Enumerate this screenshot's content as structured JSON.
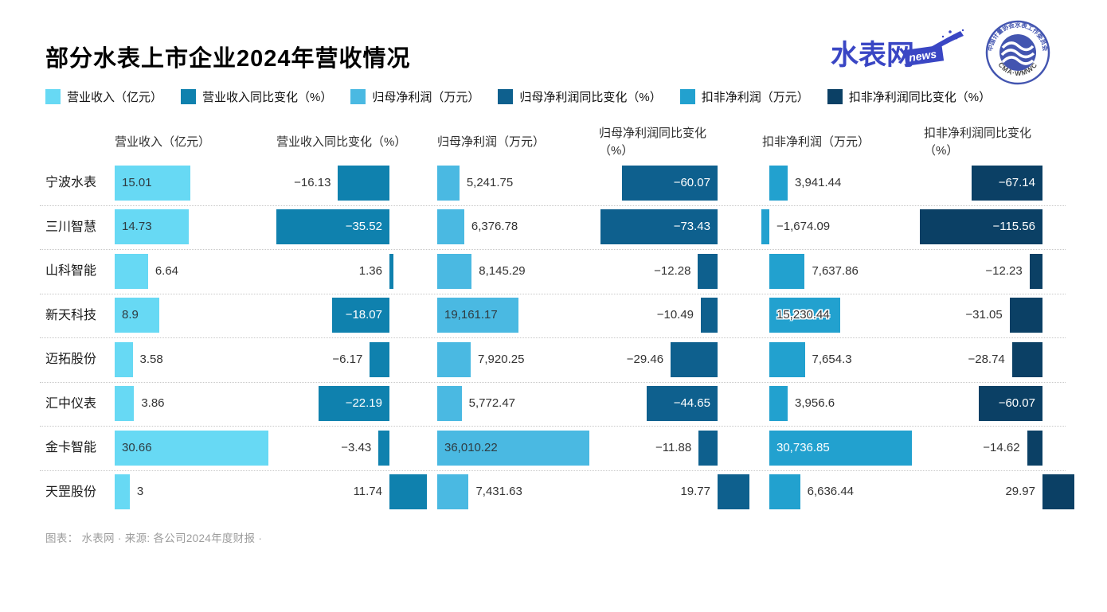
{
  "header": {
    "title": "部分水表上市企业2024年营收情况",
    "logos": {
      "news": {
        "text": "水表网",
        "tag": "news"
      },
      "badge": {
        "arc_top": "中国计量协会水表工作委员会",
        "arc_bottom": "CMA·WMWC"
      }
    }
  },
  "footer": {
    "text": "图表： 水表网 · 来源: 各公司2024年度财报 ·"
  },
  "chart_data": {
    "type": "bar",
    "orientation": "horizontal",
    "title": "部分水表上市企业2024年营收情况",
    "grid": false,
    "legend_position": "top",
    "categories": [
      "宁波水表",
      "三川智慧",
      "山科智能",
      "新天科技",
      "迈拓股份",
      "汇中仪表",
      "金卡智能",
      "天罡股份"
    ],
    "series": [
      {
        "name": "营业收入（亿元）",
        "color": "#67d9f4",
        "values": [
          15.01,
          14.73,
          6.64,
          8.9,
          3.58,
          3.86,
          30.66,
          3
        ],
        "labels": [
          "15.01",
          "14.73",
          "6.64",
          "8.9",
          "3.58",
          "3.86",
          "30.66",
          "3"
        ],
        "label_pos": [
          "in",
          "in",
          "out",
          "in",
          "out",
          "out",
          "in",
          "out"
        ]
      },
      {
        "name": "营业收入同比变化（%）",
        "color": "#0f81ae",
        "values": [
          -16.13,
          -35.52,
          1.36,
          -18.07,
          -6.17,
          -22.19,
          -3.43,
          11.74
        ],
        "labels": [
          "−16.13",
          "−35.52",
          "1.36",
          "−18.07",
          "−6.17",
          "−22.19",
          "−3.43",
          "11.74"
        ],
        "label_pos": [
          "out",
          "in",
          "out",
          "in",
          "out",
          "in",
          "out",
          "out"
        ]
      },
      {
        "name": "归母净利润（万元）",
        "color": "#4ab9e2",
        "values": [
          5241.75,
          6376.78,
          8145.29,
          19161.17,
          7920.25,
          5772.47,
          36010.22,
          7431.63
        ],
        "labels": [
          "5,241.75",
          "6,376.78",
          "8,145.29",
          "19,161.17",
          "7,920.25",
          "5,772.47",
          "36,010.22",
          "7,431.63"
        ],
        "label_pos": [
          "out",
          "out",
          "out",
          "in",
          "out",
          "out",
          "in",
          "out"
        ]
      },
      {
        "name": "归母净利润同比变化（%）",
        "color": "#0e608e",
        "values": [
          -60.07,
          -73.43,
          -12.28,
          -10.49,
          -29.46,
          -44.65,
          -11.88,
          19.77
        ],
        "labels": [
          "−60.07",
          "−73.43",
          "−12.28",
          "−10.49",
          "−29.46",
          "−44.65",
          "−11.88",
          "19.77"
        ],
        "label_pos": [
          "in",
          "in",
          "out",
          "out",
          "out",
          "in",
          "out",
          "out"
        ]
      },
      {
        "name": "扣非净利润（万元）",
        "color": "#22a1cf",
        "values": [
          3941.44,
          -1674.09,
          7637.86,
          15230.44,
          7654.3,
          3956.6,
          30736.85,
          6636.44
        ],
        "labels": [
          "3,941.44",
          "−1,674.09",
          "7,637.86",
          "15,230.44",
          "7,654.3",
          "3,956.6",
          "30,736.85",
          "6,636.44"
        ],
        "label_pos": [
          "out",
          "out",
          "out",
          "halo",
          "out",
          "out",
          "in",
          "out"
        ]
      },
      {
        "name": "扣非净利润同比变化（%）",
        "color": "#0b4065",
        "values": [
          -67.14,
          -115.56,
          -12.23,
          -31.05,
          -28.74,
          -60.07,
          -14.62,
          29.97
        ],
        "labels": [
          "−67.14",
          "−115.56",
          "−12.23",
          "−31.05",
          "−28.74",
          "−60.07",
          "−14.62",
          "29.97"
        ],
        "label_pos": [
          "in",
          "in",
          "out",
          "out",
          "out",
          "in",
          "out",
          "out"
        ]
      }
    ]
  }
}
